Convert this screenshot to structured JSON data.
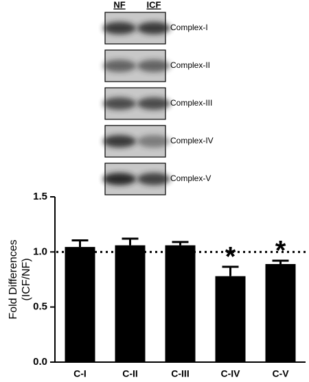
{
  "blot": {
    "lanes": [
      "NF",
      "ICF"
    ],
    "bands": [
      "Complex-I",
      "Complex-II",
      "Complex-III",
      "Complex-IV",
      "Complex-V"
    ]
  },
  "chart_data": {
    "type": "bar",
    "ylabel": [
      "Fold Differences",
      "(ICF/NF)"
    ],
    "categories": [
      "C-I",
      "C-II",
      "C-III",
      "C-IV",
      "C-V"
    ],
    "values": [
      1.045,
      1.06,
      1.06,
      0.78,
      0.89
    ],
    "errors": [
      0.06,
      0.06,
      0.03,
      0.085,
      0.03
    ],
    "color": "#000000",
    "ylim": [
      0,
      1.5
    ],
    "yticks": [
      {
        "value": 0,
        "label": "0.0"
      },
      0.5,
      {
        "value": 1,
        "label": "1.0"
      },
      1.5
    ],
    "reference_line": 1,
    "annotations": [
      {
        "text": "*",
        "category": "C-IV"
      },
      {
        "text": "*",
        "category": "C-V"
      }
    ]
  }
}
